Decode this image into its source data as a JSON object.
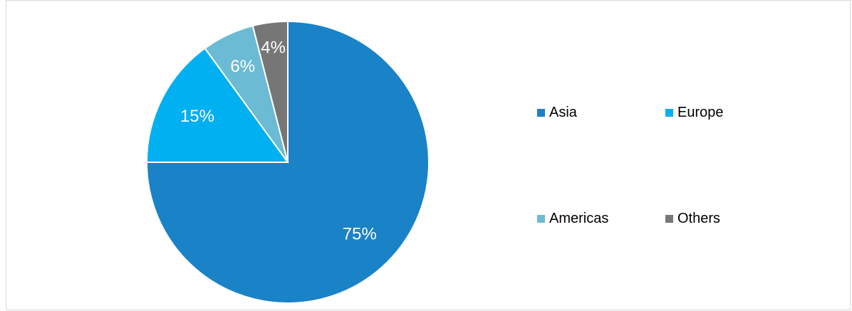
{
  "chart_data": {
    "type": "pie",
    "title": "",
    "slices": [
      {
        "label": "Asia",
        "value": 75,
        "display": "75%",
        "color": "#1a82c7"
      },
      {
        "label": "Europe",
        "value": 15,
        "display": "15%",
        "color": "#00b0f0"
      },
      {
        "label": "Americas",
        "value": 6,
        "display": "6%",
        "color": "#6abbd3"
      },
      {
        "label": "Others",
        "value": 4,
        "display": "4%",
        "color": "#767676"
      }
    ],
    "start_angle_deg": 0,
    "direction": "clockwise",
    "legend_position": "right"
  }
}
